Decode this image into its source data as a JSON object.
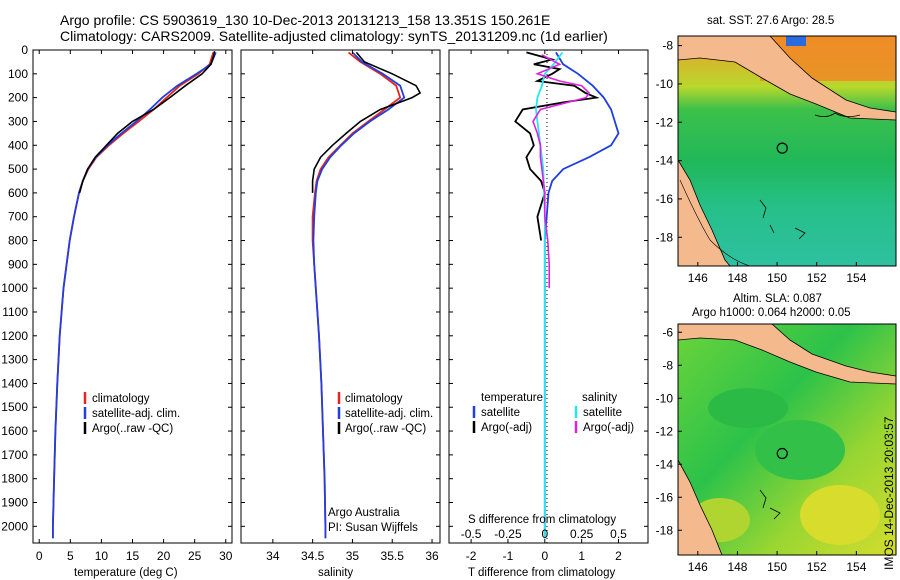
{
  "header": {
    "line1": "Argo profile: CS 5903619_130 10-Dec-2013 20131213_158 13.351S 150.261E",
    "line2": "Climatology: CARS2009. Satellite-adjusted climatology: synTS_20131209.nc (1d earlier)"
  },
  "side_stamp": "IMOS 14-Dec-2013 20:03:57",
  "depth_ticks": [
    "0",
    "100",
    "200",
    "300",
    "400",
    "500",
    "600",
    "700",
    "800",
    "900",
    "1000",
    "1100",
    "1200",
    "1300",
    "1400",
    "1500",
    "1600",
    "1700",
    "1800",
    "1900",
    "2000"
  ],
  "colors": {
    "climatology": "#e8241c",
    "satellite": "#1f3fe0",
    "argo": "#000000",
    "sat_salinity": "#22e8f0",
    "argo_adj": "#e020e0",
    "land": "#f4b98c"
  },
  "chart_data": [
    {
      "type": "line",
      "title": "Temperature profile",
      "xlabel": "temperature (deg C)",
      "ylabel": "depth",
      "xlim": [
        -1,
        31
      ],
      "ylim": [
        2070,
        0
      ],
      "xticks": [
        "0",
        "5",
        "10",
        "15",
        "20",
        "25",
        "30"
      ],
      "legend": [
        "climatology",
        "satellite-adj. clim.",
        "Argo(..raw -QC)"
      ],
      "series": [
        {
          "name": "climatology",
          "depth": [
            10,
            60,
            100,
            150,
            200,
            250,
            300,
            350,
            400,
            450,
            500,
            550,
            600,
            700,
            800,
            900,
            1000,
            1200,
            1400,
            1600,
            1800,
            2000,
            2050
          ],
          "values": [
            28.0,
            27.4,
            25.6,
            22.6,
            20.5,
            18.4,
            16.0,
            13.5,
            11.2,
            9.2,
            7.9,
            7.0,
            6.4,
            5.6,
            4.9,
            4.4,
            3.9,
            3.3,
            2.9,
            2.6,
            2.4,
            2.2,
            2.2
          ]
        },
        {
          "name": "satellite-adj. clim.",
          "depth": [
            10,
            60,
            100,
            150,
            200,
            250,
            300,
            350,
            400,
            450,
            500,
            550,
            600,
            700,
            800,
            900,
            1000,
            1200,
            1400,
            1600,
            1800,
            2000,
            2050
          ],
          "values": [
            28.4,
            27.6,
            25.3,
            22.2,
            19.8,
            17.8,
            15.6,
            13.2,
            11.0,
            9.1,
            7.8,
            7.0,
            6.4,
            5.6,
            4.9,
            4.4,
            3.9,
            3.3,
            2.9,
            2.6,
            2.4,
            2.2,
            2.2
          ]
        },
        {
          "name": "Argo(..raw -QC)",
          "depth": [
            5,
            30,
            60,
            100,
            150,
            200,
            250,
            300,
            350,
            400,
            450,
            500,
            550,
            600
          ],
          "values": [
            28.2,
            28.0,
            27.6,
            26.2,
            23.5,
            21.0,
            18.4,
            15.0,
            12.6,
            10.8,
            9.0,
            7.8,
            7.0,
            6.5
          ]
        }
      ]
    },
    {
      "type": "line",
      "title": "Salinity profile",
      "xlabel": "salinity",
      "ylabel": "depth",
      "xlim": [
        33.6,
        36.1
      ],
      "ylim": [
        2070,
        0
      ],
      "xticks": [
        "34",
        "34.5",
        "35",
        "35.5",
        "36"
      ],
      "legend": [
        "climatology",
        "satellite-adj. clim.",
        "Argo(..raw -QC)"
      ],
      "annotation": [
        "Argo Australia",
        "PI: Susan Wijffels"
      ],
      "series": [
        {
          "name": "climatology",
          "depth": [
            10,
            50,
            100,
            150,
            200,
            250,
            300,
            350,
            400,
            450,
            500,
            550,
            600,
            700,
            800,
            900,
            1000,
            1200,
            1400,
            1600,
            1800,
            2000,
            2050
          ],
          "values": [
            34.95,
            35.1,
            35.35,
            35.55,
            35.6,
            35.4,
            35.2,
            35.0,
            34.85,
            34.7,
            34.6,
            34.55,
            34.53,
            34.5,
            34.5,
            34.52,
            34.54,
            34.58,
            34.61,
            34.63,
            34.65,
            34.66,
            34.66
          ]
        },
        {
          "name": "satellite-adj. clim.",
          "depth": [
            10,
            50,
            100,
            150,
            200,
            250,
            300,
            350,
            400,
            450,
            500,
            550,
            600,
            700,
            800,
            900,
            1000,
            1200,
            1400,
            1600,
            1800,
            2000,
            2050
          ],
          "values": [
            35.0,
            35.12,
            35.38,
            35.6,
            35.65,
            35.45,
            35.22,
            35.02,
            34.86,
            34.72,
            34.62,
            34.56,
            34.54,
            34.52,
            34.51,
            34.52,
            34.54,
            34.58,
            34.61,
            34.63,
            34.65,
            34.66,
            34.66
          ]
        },
        {
          "name": "Argo(..raw -QC)",
          "depth": [
            10,
            50,
            100,
            150,
            180,
            200,
            250,
            300,
            350,
            400,
            450,
            500,
            550,
            600
          ],
          "values": [
            35.05,
            35.15,
            35.5,
            35.8,
            35.85,
            35.75,
            35.35,
            35.1,
            34.92,
            34.75,
            34.6,
            34.52,
            34.5,
            34.5
          ]
        }
      ]
    },
    {
      "type": "line",
      "title": "Difference from climatology",
      "xlabel": "T difference from climatology",
      "xlabel_top": "S difference from climatology",
      "ylabel": "depth",
      "xlim": [
        -2.6,
        2.8
      ],
      "ylim": [
        2070,
        0
      ],
      "xticks": [
        "-2",
        "-1",
        "0",
        "1",
        "2"
      ],
      "xticks_top": [
        "-0.5",
        "-0.25",
        "0",
        "0.25",
        "0.5"
      ],
      "legend_left_title": "temperature",
      "legend_right_title": "salinity",
      "legend": [
        "satellite",
        "Argo(-adj)",
        "satellite",
        "Argo(-adj)"
      ],
      "series": [
        {
          "name": "temperature satellite",
          "depth": [
            10,
            60,
            100,
            150,
            200,
            250,
            300,
            350,
            400,
            450,
            500,
            550,
            600,
            700,
            800,
            900,
            1000,
            1500,
            2050
          ],
          "values": [
            0.3,
            0.5,
            0.9,
            1.3,
            1.6,
            1.8,
            1.9,
            2.0,
            1.8,
            1.2,
            0.5,
            0.2,
            0.1,
            0.05,
            0.0,
            0.0,
            0.0,
            0.0,
            0.0
          ]
        },
        {
          "name": "temperature Argo(-adj)",
          "depth": [
            10,
            40,
            60,
            80,
            100,
            130,
            150,
            180,
            200,
            220,
            250,
            300,
            350,
            400,
            450,
            500,
            550,
            600,
            700,
            800
          ],
          "values": [
            -0.5,
            0.2,
            -0.3,
            0.4,
            0.2,
            -0.2,
            0.8,
            1.1,
            1.4,
            0.5,
            -0.6,
            -0.8,
            -0.4,
            -0.3,
            -0.5,
            -0.4,
            -0.1,
            0.0,
            -0.2,
            -0.1
          ]
        },
        {
          "name": "salinity satellite",
          "depth": [
            10,
            60,
            100,
            150,
            200,
            250,
            300,
            350,
            400,
            500,
            700,
            1000,
            1500,
            2050
          ],
          "values": [
            0.12,
            0.06,
            0.0,
            -0.02,
            -0.05,
            -0.06,
            -0.05,
            -0.04,
            -0.03,
            -0.01,
            0.0,
            0.0,
            0.0,
            0.0
          ]
        },
        {
          "name": "salinity Argo(-adj)",
          "depth": [
            20,
            60,
            100,
            130,
            150,
            180,
            200,
            250,
            300,
            350,
            400,
            450,
            500,
            550,
            600,
            700,
            800,
            900,
            1000
          ],
          "values": [
            -0.02,
            0.1,
            -0.05,
            0.1,
            0.25,
            0.3,
            0.28,
            -0.03,
            -0.08,
            -0.05,
            -0.03,
            -0.03,
            -0.02,
            -0.01,
            0.0,
            0.0,
            0.02,
            0.03,
            0.03
          ]
        }
      ]
    },
    {
      "type": "heatmap",
      "title": "sat. SST: 27.6 Argo: 28.5",
      "xlim": [
        145,
        156
      ],
      "ylim": [
        -19.5,
        -7.5
      ],
      "xticks": [
        "146",
        "148",
        "150",
        "152",
        "154"
      ],
      "yticks": [
        "-8",
        "-10",
        "-12",
        "-14",
        "-16",
        "-18"
      ],
      "marker": [
        150.26,
        -13.35
      ]
    },
    {
      "type": "heatmap",
      "title_lines": [
        "Altim. SLA: 0.087",
        "Argo h1000: 0.064 h2000: 0.05"
      ],
      "xlim": [
        145,
        156
      ],
      "ylim": [
        -19.5,
        -5.5
      ],
      "xticks": [
        "146",
        "148",
        "150",
        "152",
        "154"
      ],
      "yticks": [
        "-6",
        "-8",
        "-10",
        "-12",
        "-14",
        "-16",
        "-18"
      ],
      "marker": [
        150.26,
        -13.35
      ]
    }
  ]
}
